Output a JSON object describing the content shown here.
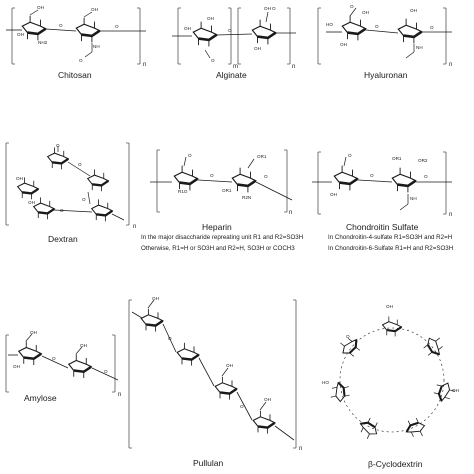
{
  "molecules": [
    {
      "id": "chitosan",
      "name": "Chitosan",
      "groups": [
        "OH",
        "OH",
        "NH2",
        "OH",
        "O",
        "NH",
        "O",
        "O",
        "n"
      ]
    },
    {
      "id": "alginate",
      "name": "Alginate",
      "groups": [
        "OH",
        "OH",
        "O",
        "O",
        "OH",
        "OH",
        "O",
        "m",
        "n"
      ]
    },
    {
      "id": "hyaluronan",
      "name": "Hyaluronan",
      "groups": [
        "OH",
        "O",
        "HO",
        "OH",
        "OH",
        "O",
        "O",
        "NH",
        "n"
      ]
    },
    {
      "id": "dextran",
      "name": "Dextran",
      "groups": [
        "O",
        "O",
        "O",
        "O",
        "OH",
        "OH",
        "n"
      ]
    },
    {
      "id": "heparin",
      "name": "Heparin",
      "groups": [
        "O",
        "OR1",
        "O",
        "R1O",
        "OR1",
        "O",
        "R2N",
        "n"
      ]
    },
    {
      "id": "chondroitin-sulfate",
      "name": "Chondroitin Sulfate",
      "groups": [
        "O",
        "OR1",
        "O",
        "OH",
        "OR2",
        "O",
        "NH",
        "n"
      ]
    },
    {
      "id": "amylose",
      "name": "Amylose",
      "groups": [
        "OH",
        "O",
        "OH",
        "OH",
        "O",
        "n"
      ]
    },
    {
      "id": "pullulan",
      "name": "Pullulan",
      "groups": [
        "OH",
        "O",
        "OH",
        "OH",
        "O",
        "n"
      ]
    },
    {
      "id": "beta-cyclodextrin",
      "name": "β-Cyclodextrin",
      "groups": [
        "OH",
        "O",
        "HO",
        "OH"
      ]
    }
  ],
  "heparin_notes": [
    "In the major disaccharide repreating unit R1 and R2=SO3H",
    "Otherwise, R1=H or SO3H and R2=H, SO3H or COCH3"
  ],
  "chondroitin_notes": [
    "In Chondroitin-4-sulfate  R1=SO3H and R2=H",
    "In Chondroitin-6-Sulfate  R1=H and R2=SO3H"
  ]
}
